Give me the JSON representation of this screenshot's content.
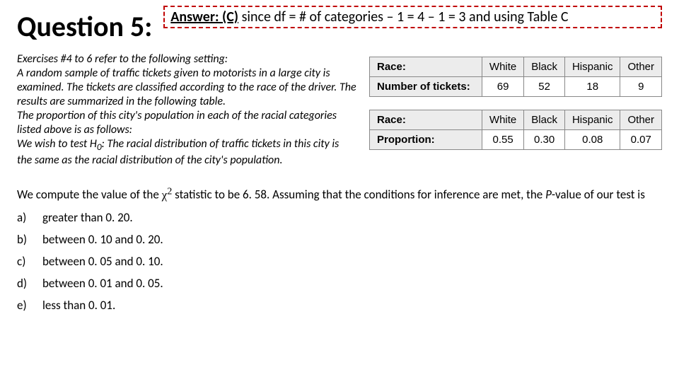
{
  "header": {
    "title": "Question 5:",
    "answer_label": "Answer: (C)",
    "answer_text": " since df = # of categories – 1 = 4 – 1 = 3 and using Table C",
    "answer_border_color": "#c00000"
  },
  "setting": {
    "line1": "Exercises #4 to 6 refer to the following setting:",
    "line2": "A random sample of traffic tickets given to motorists in a large city is examined. The tickets are classified according to the race of the driver. The results are summarized in the following table.",
    "line3": "The proportion of this city's population in each of the racial categories listed above is as follows:",
    "line4_pre": "We wish to test ",
    "line4_h0": "H",
    "line4_sub": "0",
    "line4_post": ": The racial distribution of traffic tickets in this city is the same as the racial distribution of the city's population."
  },
  "table1": {
    "row1_label": "Race:",
    "row2_label": "Number of tickets:",
    "cols": [
      "White",
      "Black",
      "Hispanic",
      "Other"
    ],
    "vals": [
      "69",
      "52",
      "18",
      "9"
    ],
    "header_bg": "#ececec",
    "border_color": "#888888"
  },
  "table2": {
    "row1_label": "Race:",
    "row2_label": "Proportion:",
    "cols": [
      "White",
      "Black",
      "Hispanic",
      "Other"
    ],
    "vals": [
      "0.55",
      "0.30",
      "0.08",
      "0.07"
    ],
    "header_bg": "#ececec",
    "border_color": "#888888"
  },
  "question": {
    "pre": "We compute the value of the ",
    "chi": "χ",
    "sup": "2",
    "mid": " statistic to be 6. 58. Assuming that the conditions for inference are met, the ",
    "pvar": "P",
    "post": "-value of our test is"
  },
  "options": {
    "a": {
      "letter": "a)",
      "text": "greater than 0. 20."
    },
    "b": {
      "letter": "b)",
      "text": "between 0. 10 and 0. 20."
    },
    "c": {
      "letter": "c)",
      "text": "between 0. 05 and 0. 10."
    },
    "d": {
      "letter": "d)",
      "text": "between 0. 01 and 0. 05."
    },
    "e": {
      "letter": "e)",
      "text": "less than 0. 01."
    }
  }
}
